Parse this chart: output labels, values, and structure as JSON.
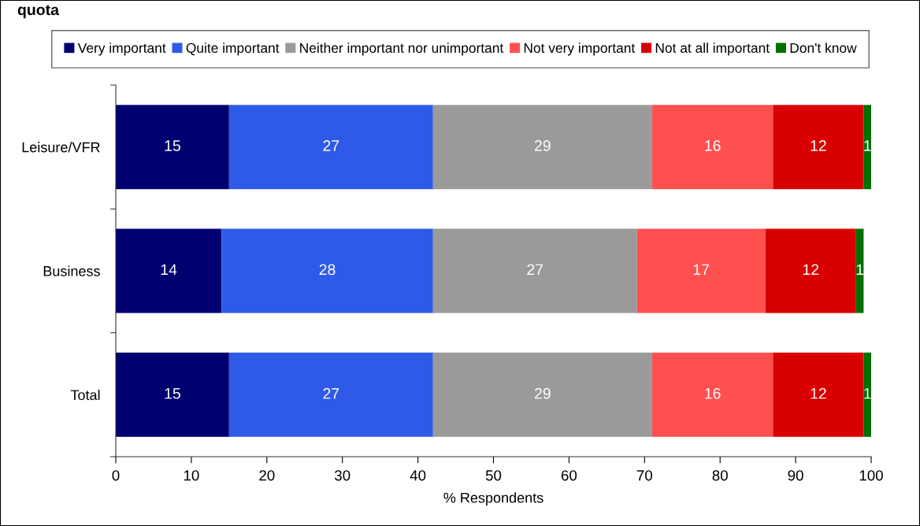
{
  "chart_data": {
    "type": "bar",
    "orientation": "horizontal",
    "stacked": true,
    "title": "quota",
    "xlabel": "% Respondents",
    "categories": [
      "Leisure/VFR",
      "Business",
      "Total"
    ],
    "series": [
      {
        "name": "Very important",
        "color": "#000070",
        "values": [
          15,
          14,
          15
        ]
      },
      {
        "name": "Quite important",
        "color": "#2f5ae8",
        "values": [
          27,
          28,
          27
        ]
      },
      {
        "name": "Neither important nor unimportant",
        "color": "#9a9a9a",
        "values": [
          29,
          27,
          29
        ]
      },
      {
        "name": "Not very important",
        "color": "#ff5050",
        "values": [
          16,
          17,
          16
        ]
      },
      {
        "name": "Not at all important",
        "color": "#d80000",
        "values": [
          12,
          12,
          12
        ]
      },
      {
        "name": "Don't know",
        "color": "#007000",
        "values": [
          1,
          1,
          1
        ]
      }
    ],
    "xlim": [
      0,
      100
    ],
    "xticks": [
      0,
      10,
      20,
      30,
      40,
      50,
      60,
      70,
      80,
      90,
      100
    ],
    "data_labels": true,
    "legend": "top",
    "grid": false
  }
}
